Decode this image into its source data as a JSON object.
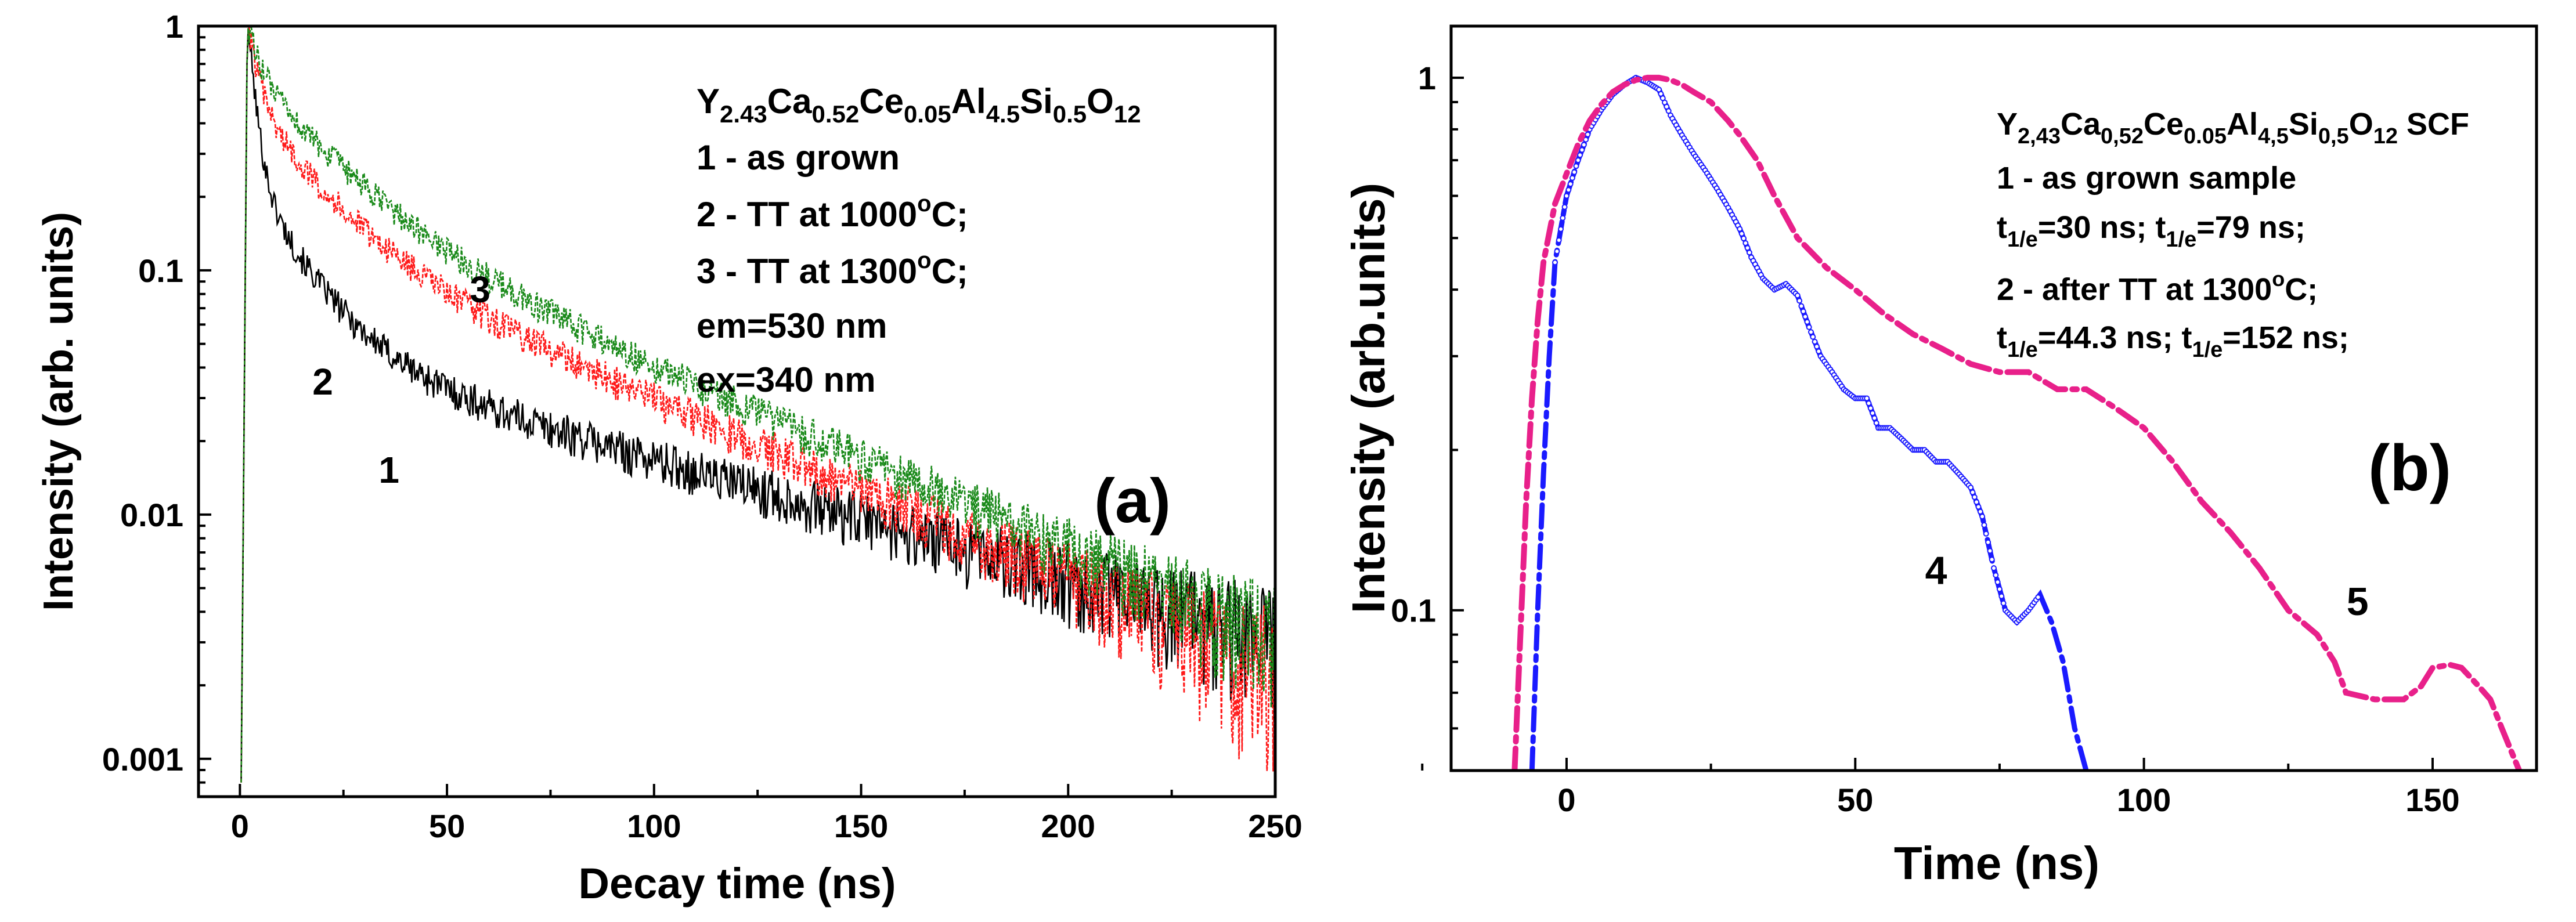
{
  "chart_data": [
    {
      "type": "line",
      "panel_label": "(a)",
      "xlabel": "Decay time (ns)",
      "ylabel": "Intensity (arb. units)",
      "xlim": [
        -10,
        250
      ],
      "ylim": [
        0.0007,
        1.0
      ],
      "yscale": "log",
      "x_ticks": [
        0,
        50,
        100,
        150,
        200,
        250
      ],
      "x_tick_labels": [
        "0",
        "50",
        "100",
        "150",
        "200",
        "250"
      ],
      "y_ticks": [
        0.001,
        0.01,
        0.1,
        1
      ],
      "y_tick_labels": [
        "0.001",
        "0.01",
        "0.1",
        "1"
      ],
      "legend": {
        "composition": {
          "base": "Y",
          "s1": "2.43",
          "t1": "Ca",
          "s2": "0.52",
          "t2": "Ce",
          "s3": "0.05",
          "t3": "Al",
          "s4": "4.5",
          "t4": "Si",
          "s5": "0.5",
          "t5": "O",
          "s6": "12"
        },
        "line1": "1 - as grown",
        "line2_pre": "2 - TT at 1000",
        "line2_deg": "o",
        "line2_post": "C;",
        "line3_pre": "3 - TT at 1300",
        "line3_deg": "o",
        "line3_post": "C;",
        "line4": "em=530 nm",
        "line5": "ex=340 nm"
      },
      "series": [
        {
          "name": "1",
          "color": "#000000",
          "peak_x": 2,
          "tau_fast": 1.8,
          "tau_mid": 12,
          "tau_slow": 90,
          "a_fast": 0.75,
          "a_mid": 0.2,
          "a_slow": 0.05,
          "label_x": 36,
          "label_y": 0.0135
        },
        {
          "name": "2",
          "color": "#ff1a1a",
          "peak_x": 2,
          "tau_fast": 2.5,
          "tau_mid": 15,
          "tau_slow": 60,
          "a_fast": 0.5,
          "a_mid": 0.35,
          "a_slow": 0.15,
          "label_x": 20,
          "label_y": 0.031
        },
        {
          "name": "3",
          "color": "#1a8a1a",
          "peak_x": 2,
          "tau_fast": 3.0,
          "tau_mid": 18,
          "tau_slow": 60,
          "a_fast": 0.35,
          "a_mid": 0.45,
          "a_slow": 0.2,
          "label_x": 58,
          "label_y": 0.074
        }
      ]
    },
    {
      "type": "line",
      "panel_label": "(b)",
      "xlabel": "Time (ns)",
      "ylabel": "Intensity (arb.units)",
      "xlim": [
        -20,
        168
      ],
      "ylim": [
        0.05,
        1.25
      ],
      "yscale": "log",
      "x_ticks": [
        0,
        50,
        100,
        150
      ],
      "x_tick_labels": [
        "0",
        "50",
        "100",
        "150"
      ],
      "y_ticks": [
        0.1,
        1
      ],
      "y_tick_labels": [
        "0.1",
        "1"
      ],
      "legend": {
        "title_comp": {
          "base": "Y",
          "s1": "2,43",
          "t1": "Ca",
          "s2": "0,52",
          "t2": "Ce",
          "s3": "0.05",
          "t3": "Al",
          "s4": "4,5",
          "t4": "Si",
          "s5": "0,5",
          "t5": "O",
          "s6": "12",
          "suffix": " SCF"
        },
        "line1": "1 - as grown sample",
        "line2": {
          "t": "t",
          "sub": "1/e",
          "v1": "=30 ns; ",
          "v2": "=79 ns;"
        },
        "line3_pre": "2 - after TT at 1300",
        "line3_deg": "o",
        "line3_post": "C;",
        "line4": {
          "t": "t",
          "sub": "1/e",
          "v1": "=44.3 ns; ",
          "v2": "=152 ns;"
        }
      },
      "series": [
        {
          "name": "4",
          "color": "#1a1aff",
          "label_x": 140,
          "label_y": 0.108,
          "label_dx": -82,
          "x": [
            -6,
            -5,
            -4,
            -3,
            -2,
            0,
            2,
            4,
            6,
            8,
            10,
            12,
            14,
            16,
            18,
            20,
            22,
            24,
            26,
            28,
            30,
            32,
            34,
            36,
            38,
            40,
            42,
            44,
            46,
            48,
            50,
            52,
            54,
            56,
            58,
            60,
            62,
            64,
            66,
            68,
            70,
            72,
            74,
            76,
            78,
            80,
            82,
            84,
            86,
            88,
            90
          ],
          "y": [
            0.05,
            0.1,
            0.18,
            0.3,
            0.45,
            0.6,
            0.7,
            0.8,
            0.87,
            0.93,
            0.97,
            1.0,
            0.98,
            0.95,
            0.85,
            0.78,
            0.72,
            0.67,
            0.62,
            0.57,
            0.52,
            0.46,
            0.42,
            0.4,
            0.41,
            0.39,
            0.34,
            0.3,
            0.28,
            0.26,
            0.25,
            0.25,
            0.22,
            0.22,
            0.21,
            0.2,
            0.2,
            0.19,
            0.19,
            0.18,
            0.17,
            0.15,
            0.12,
            0.1,
            0.095,
            0.1,
            0.107,
            0.095,
            0.08,
            0.06,
            0.05
          ]
        },
        {
          "name": "5",
          "color": "#e8208a",
          "label_x": 140,
          "label_y": 0.108,
          "label_dx": -12,
          "x": [
            -9,
            -8,
            -7,
            -6,
            -5,
            -4,
            -2,
            0,
            2,
            4,
            6,
            8,
            10,
            12,
            14,
            16,
            18,
            20,
            22,
            25,
            28,
            30,
            33,
            36,
            40,
            45,
            50,
            55,
            60,
            65,
            70,
            75,
            80,
            85,
            90,
            95,
            100,
            105,
            110,
            115,
            120,
            125,
            130,
            133,
            135,
            140,
            145,
            148,
            150,
            153,
            155,
            158,
            160,
            162,
            165
          ],
          "y": [
            0.05,
            0.09,
            0.16,
            0.25,
            0.35,
            0.45,
            0.58,
            0.66,
            0.75,
            0.83,
            0.89,
            0.94,
            0.97,
            0.99,
            1.0,
            1.0,
            0.99,
            0.97,
            0.94,
            0.9,
            0.83,
            0.78,
            0.7,
            0.6,
            0.5,
            0.44,
            0.4,
            0.36,
            0.33,
            0.31,
            0.29,
            0.28,
            0.28,
            0.26,
            0.26,
            0.24,
            0.22,
            0.19,
            0.16,
            0.14,
            0.12,
            0.1,
            0.09,
            0.08,
            0.07,
            0.068,
            0.068,
            0.072,
            0.078,
            0.079,
            0.078,
            0.072,
            0.068,
            0.06,
            0.05
          ]
        }
      ]
    }
  ]
}
